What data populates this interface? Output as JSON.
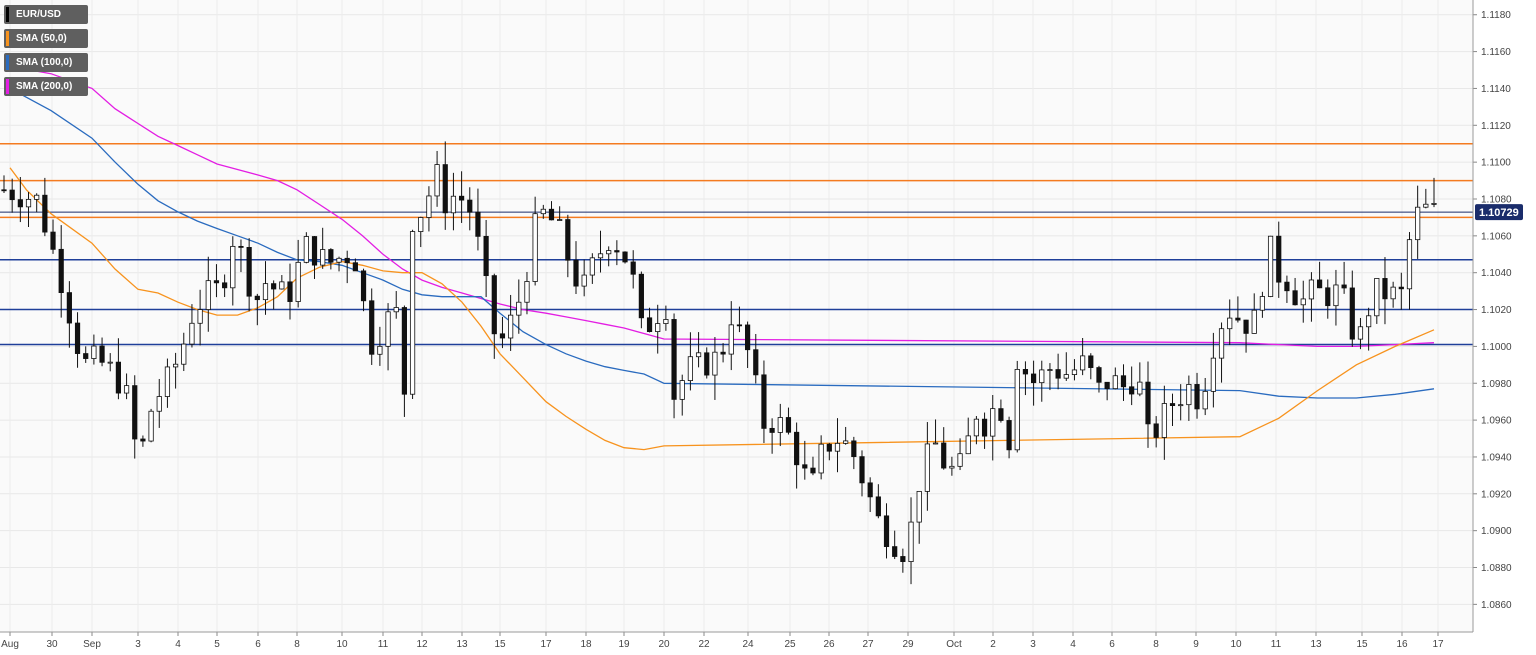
{
  "chart_data": {
    "type": "candlestick",
    "symbol": "EUR/USD",
    "current_price": "1.10729",
    "ylim": [
      1.0845,
      1.1188
    ],
    "y_ticks": [
      "1.0860",
      "1.0880",
      "1.0900",
      "1.0920",
      "1.0940",
      "1.0960",
      "1.0980",
      "1.1000",
      "1.1020",
      "1.1040",
      "1.1060",
      "1.1080",
      "1.1100",
      "1.1120",
      "1.1140",
      "1.1160",
      "1.1180"
    ],
    "x_ticks": [
      "Aug",
      "30",
      "Sep",
      "3",
      "4",
      "5",
      "6",
      "8",
      "10",
      "11",
      "12",
      "13",
      "15",
      "17",
      "18",
      "19",
      "20",
      "22",
      "24",
      "25",
      "26",
      "27",
      "29",
      "Oct",
      "2",
      "3",
      "4",
      "6",
      "8",
      "9",
      "10",
      "11",
      "13",
      "15",
      "16",
      "17"
    ],
    "legend": [
      {
        "label": "EUR/USD",
        "color": "#000000"
      },
      {
        "label": "SMA (50,0)",
        "color": "#f7931e"
      },
      {
        "label": "SMA (100,0)",
        "color": "#2a6bbf"
      },
      {
        "label": "SMA (200,0)",
        "color": "#e31ee3"
      }
    ],
    "horizontal_levels": [
      {
        "value": 1.111,
        "color": "#f47b20"
      },
      {
        "value": 1.109,
        "color": "#f47b20"
      },
      {
        "value": 1.107,
        "color": "#f47b20"
      },
      {
        "value": 1.1047,
        "color": "#1f3f99"
      },
      {
        "value": 1.102,
        "color": "#1f3f99"
      },
      {
        "value": 1.1001,
        "color": "#1f3f99"
      }
    ],
    "sma50": [
      [
        0,
        1.1097
      ],
      [
        0.2,
        1.1085
      ],
      [
        0.5,
        1.1072
      ],
      [
        1,
        1.1056
      ],
      [
        1.5,
        1.1042
      ],
      [
        2,
        1.1031
      ],
      [
        2.5,
        1.1029
      ],
      [
        3,
        1.1024
      ],
      [
        3.5,
        1.102
      ],
      [
        4,
        1.1017
      ],
      [
        4.5,
        1.1017
      ],
      [
        5,
        1.1021
      ],
      [
        5.5,
        1.1027
      ],
      [
        6,
        1.1037
      ],
      [
        6.5,
        1.1043
      ],
      [
        7,
        1.1046
      ],
      [
        7.5,
        1.1044
      ],
      [
        8,
        1.1041
      ],
      [
        8.5,
        1.104
      ],
      [
        9,
        1.104
      ],
      [
        9.5,
        1.1034
      ],
      [
        10,
        1.1024
      ],
      [
        10.5,
        1.1011
      ],
      [
        11,
        1.0996
      ],
      [
        11.5,
        1.0983
      ],
      [
        12,
        1.097
      ],
      [
        12.5,
        1.0962
      ],
      [
        13,
        1.0955
      ],
      [
        13.5,
        1.0949
      ],
      [
        14,
        1.0945
      ],
      [
        14.5,
        1.0944
      ],
      [
        15,
        1.0946
      ],
      [
        15.5,
        1.0951
      ],
      [
        16,
        1.0961
      ],
      [
        16.5,
        1.0976
      ],
      [
        17,
        1.099
      ],
      [
        17.5,
        1.1
      ],
      [
        18,
        1.1009
      ]
    ],
    "sma100": [
      [
        0,
        1.114
      ],
      [
        0.5,
        1.1128
      ],
      [
        1,
        1.1113
      ],
      [
        1.5,
        1.11
      ],
      [
        2,
        1.1088
      ],
      [
        2.5,
        1.1079
      ],
      [
        3,
        1.1073
      ],
      [
        3.5,
        1.1068
      ],
      [
        4,
        1.1064
      ],
      [
        4.5,
        1.106
      ],
      [
        5,
        1.1056
      ],
      [
        5.5,
        1.1051
      ],
      [
        6,
        1.1047
      ],
      [
        6.5,
        1.1046
      ],
      [
        7,
        1.1044
      ],
      [
        7.5,
        1.104
      ],
      [
        8,
        1.1036
      ],
      [
        8.5,
        1.1031
      ],
      [
        9,
        1.1028
      ],
      [
        9.5,
        1.1027
      ],
      [
        10,
        1.1027
      ],
      [
        10.5,
        1.1027
      ],
      [
        11,
        1.1018
      ],
      [
        11.5,
        1.1008
      ],
      [
        12,
        1.1001
      ],
      [
        12.5,
        1.0996
      ],
      [
        13,
        1.0992
      ],
      [
        13.5,
        1.0989
      ],
      [
        14,
        1.0987
      ],
      [
        14.5,
        1.0985
      ],
      [
        15,
        1.098
      ],
      [
        15.5,
        1.0976
      ],
      [
        16,
        1.0973
      ],
      [
        16.5,
        1.0972
      ],
      [
        17,
        1.0972
      ],
      [
        17.5,
        1.0974
      ],
      [
        18,
        1.0977
      ]
    ],
    "sma200": [
      [
        0,
        1.1152
      ],
      [
        0.5,
        1.1148
      ],
      [
        1,
        1.114
      ],
      [
        1.5,
        1.1129
      ],
      [
        2,
        1.1121
      ],
      [
        2.5,
        1.1114
      ],
      [
        3,
        1.1109
      ],
      [
        3.5,
        1.1104
      ],
      [
        4,
        1.1099
      ],
      [
        4.5,
        1.1096
      ],
      [
        5,
        1.1093
      ],
      [
        5.5,
        1.109
      ],
      [
        6,
        1.1085
      ],
      [
        6.5,
        1.1077
      ],
      [
        7,
        1.1069
      ],
      [
        7.5,
        1.106
      ],
      [
        8,
        1.105
      ],
      [
        8.5,
        1.1042
      ],
      [
        9,
        1.1036
      ],
      [
        9.5,
        1.1032
      ],
      [
        10,
        1.1029
      ],
      [
        10.5,
        1.1026
      ],
      [
        11,
        1.1023
      ],
      [
        11.5,
        1.102
      ],
      [
        12,
        1.1018
      ],
      [
        12.5,
        1.1016
      ],
      [
        13,
        1.1014
      ],
      [
        13.5,
        1.1012
      ],
      [
        14,
        1.101
      ],
      [
        14.5,
        1.1007
      ],
      [
        15,
        1.1004
      ],
      [
        15.5,
        1.1002
      ],
      [
        16,
        1.1001
      ],
      [
        16.5,
        1.1
      ],
      [
        17,
        1.1
      ],
      [
        17.5,
        1.1001
      ],
      [
        18,
        1.1002
      ]
    ],
    "anchors": [
      [
        0,
        1.1085
      ],
      [
        0.35,
        1.108
      ],
      [
        0.45,
        1.1065
      ],
      [
        0.6,
        1.104
      ],
      [
        0.85,
        1.099
      ],
      [
        1.0,
        1.0993
      ],
      [
        1.2,
        1.0985
      ],
      [
        1.35,
        1.097
      ],
      [
        1.45,
        1.0935
      ],
      [
        1.6,
        1.0968
      ],
      [
        1.75,
        1.098
      ],
      [
        1.9,
        1.0995
      ],
      [
        2.05,
        1.102
      ],
      [
        2.2,
        1.1028
      ],
      [
        2.35,
        1.1032
      ],
      [
        2.5,
        1.1065
      ],
      [
        2.6,
        1.104
      ],
      [
        2.75,
        1.1025
      ],
      [
        2.85,
        1.1038
      ],
      [
        2.95,
        1.1028
      ],
      [
        3.1,
        1.103
      ],
      [
        3.25,
        1.1055
      ],
      [
        3.5,
        1.1045
      ],
      [
        3.7,
        1.105
      ],
      [
        3.85,
        1.1045
      ],
      [
        3.92,
        1.1
      ],
      [
        4.0,
        1.1003
      ],
      [
        4.15,
        1.1015
      ],
      [
        4.25,
        1.1018
      ],
      [
        4.32,
        1.097
      ],
      [
        4.42,
        1.1075
      ],
      [
        4.55,
        1.1072
      ],
      [
        4.65,
        1.1098
      ],
      [
        4.75,
        1.1078
      ],
      [
        4.9,
        1.1083
      ],
      [
        5.05,
        1.1073
      ],
      [
        5.2,
        1.1035
      ],
      [
        5.25,
        1.101
      ],
      [
        5.4,
        1.1003
      ],
      [
        5.6,
        1.103
      ],
      [
        5.75,
        1.1067
      ],
      [
        5.85,
        1.1073
      ],
      [
        6.0,
        1.1062
      ],
      [
        6.15,
        1.104
      ],
      [
        6.25,
        1.103
      ],
      [
        6.4,
        1.1048
      ],
      [
        6.55,
        1.106
      ],
      [
        6.7,
        1.105
      ],
      [
        6.8,
        1.1035
      ],
      [
        6.9,
        1.1005
      ],
      [
        7.0,
        1.1015
      ],
      [
        7.15,
        1.1023
      ],
      [
        7.22,
        1.0972
      ],
      [
        7.4,
        1.0988
      ],
      [
        7.55,
        1.099
      ],
      [
        7.75,
        1.0995
      ],
      [
        7.85,
        1.1018
      ],
      [
        8.05,
        1.0995
      ],
      [
        8.2,
        1.0958
      ],
      [
        8.35,
        1.096
      ],
      [
        8.5,
        1.095
      ],
      [
        8.65,
        1.093
      ],
      [
        8.75,
        1.0925
      ],
      [
        8.85,
        1.0945
      ],
      [
        9.0,
        1.095
      ],
      [
        9.15,
        1.0945
      ],
      [
        9.3,
        1.0925
      ],
      [
        9.45,
        1.0905
      ],
      [
        9.6,
        1.0895
      ],
      [
        9.75,
        1.0888
      ],
      [
        9.9,
        1.093
      ],
      [
        10.05,
        1.0948
      ],
      [
        10.2,
        1.0932
      ],
      [
        10.35,
        1.0935
      ],
      [
        10.5,
        1.0965
      ],
      [
        10.6,
        1.0958
      ],
      [
        10.75,
        1.0972
      ],
      [
        10.85,
        1.0945
      ],
      [
        10.95,
        1.0995
      ],
      [
        11.1,
        1.098
      ],
      [
        11.3,
        1.0988
      ],
      [
        11.5,
        1.0985
      ],
      [
        11.7,
        1.0992
      ],
      [
        11.8,
        1.0975
      ],
      [
        11.95,
        1.0982
      ],
      [
        12.1,
        1.0978
      ],
      [
        12.25,
        1.0985
      ],
      [
        12.35,
        1.095
      ],
      [
        12.45,
        1.0955
      ],
      [
        12.6,
        1.0968
      ],
      [
        12.8,
        1.0978
      ],
      [
        12.9,
        1.0972
      ],
      [
        13.0,
        1.0985
      ],
      [
        13.1,
        1.101
      ],
      [
        13.25,
        1.102
      ],
      [
        13.35,
        1.1015
      ],
      [
        13.45,
        1.1012
      ],
      [
        13.55,
        1.1015
      ],
      [
        13.65,
        1.1058
      ],
      [
        13.75,
        1.104
      ],
      [
        13.9,
        1.1035
      ],
      [
        14.0,
        1.1023
      ],
      [
        14.15,
        1.103
      ],
      [
        14.3,
        1.1028
      ],
      [
        14.45,
        1.103
      ],
      [
        14.55,
        1.101
      ],
      [
        14.65,
        1.1005
      ],
      [
        14.8,
        1.103
      ],
      [
        15.0,
        1.1028
      ],
      [
        15.1,
        1.1028
      ],
      [
        15.2,
        1.1062
      ],
      [
        15.3,
        1.1075
      ],
      [
        15.45,
        1.1073
      ]
    ],
    "candle_count": 176
  }
}
